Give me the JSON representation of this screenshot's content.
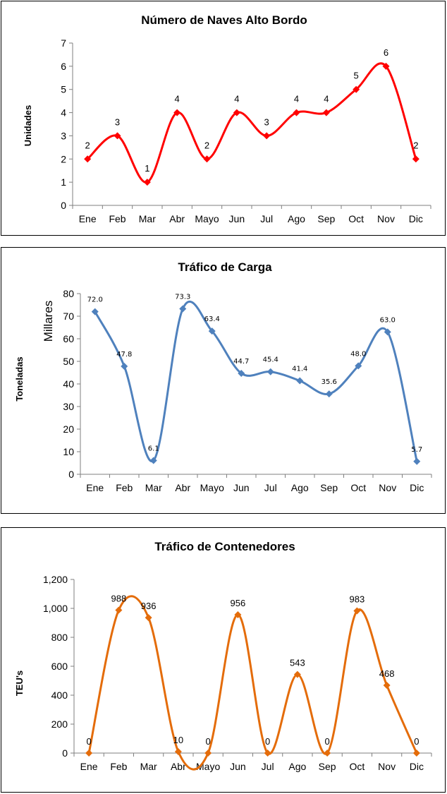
{
  "chart_data": [
    {
      "type": "line",
      "title": "Número de Naves Alto Bordo",
      "ylabel": "Unidades",
      "ylabel2": "",
      "categories": [
        "Ene",
        "Feb",
        "Mar",
        "Abr",
        "Mayo",
        "Jun",
        "Jul",
        "Ago",
        "Sep",
        "Oct",
        "Nov",
        "Dic"
      ],
      "series": [
        {
          "values": [
            2,
            3,
            1,
            4,
            2,
            4,
            3,
            4,
            4,
            5,
            6,
            2
          ]
        }
      ],
      "labels": [
        "2",
        "3",
        "1",
        "4",
        "2",
        "4",
        "3",
        "4",
        "4",
        "5",
        "6",
        "2"
      ],
      "ylim": [
        0,
        7
      ],
      "yticks": [
        0,
        1,
        2,
        3,
        4,
        5,
        6,
        7
      ],
      "ytick_labels": [
        "0",
        "1",
        "2",
        "3",
        "4",
        "5",
        "6",
        "7"
      ],
      "color": "#ff0000",
      "legend": "none",
      "grid": false
    },
    {
      "type": "line",
      "title": "Tráfico de Carga",
      "ylabel": "Toneladas",
      "ylabel2": "Millares",
      "categories": [
        "Ene",
        "Feb",
        "Mar",
        "Abr",
        "Mayo",
        "Jun",
        "Jul",
        "Ago",
        "Sep",
        "Oct",
        "Nov",
        "Dic"
      ],
      "series": [
        {
          "values": [
            72.0,
            47.8,
            6.1,
            73.3,
            63.4,
            44.7,
            45.4,
            41.4,
            35.6,
            48.0,
            63.0,
            5.7
          ]
        }
      ],
      "labels": [
        "72.0",
        "47.8",
        "6.1",
        "73.3",
        "63.4",
        "44.7",
        "45.4",
        "41.4",
        "35.6",
        "48.0",
        "63.0",
        "5.7"
      ],
      "ylim": [
        0,
        80
      ],
      "yticks": [
        0,
        10,
        20,
        30,
        40,
        50,
        60,
        70,
        80
      ],
      "ytick_labels": [
        "0",
        "10",
        "20",
        "30",
        "40",
        "50",
        "60",
        "70",
        "80"
      ],
      "color": "#4f81bd",
      "legend": "none",
      "grid": false
    },
    {
      "type": "line",
      "title": "Tráfico de Contenedores",
      "ylabel": "TEU's",
      "ylabel2": "",
      "categories": [
        "Ene",
        "Feb",
        "Mar",
        "Abr",
        "Mayo",
        "Jun",
        "Jul",
        "Ago",
        "Sep",
        "Oct",
        "Nov",
        "Dic"
      ],
      "series": [
        {
          "values": [
            0,
            988,
            936,
            10,
            0,
            956,
            0,
            543,
            0,
            983,
            468,
            0
          ]
        }
      ],
      "labels": [
        "0",
        "988",
        "936",
        "10",
        "0",
        "956",
        "0",
        "543",
        "0",
        "983",
        "468",
        "0"
      ],
      "ylim": [
        0,
        1200
      ],
      "yticks": [
        0,
        200,
        400,
        600,
        800,
        1000,
        1200
      ],
      "ytick_labels": [
        "0",
        "200",
        "400",
        "600",
        "800",
        "1,000",
        "1,200"
      ],
      "color": "#e46c0a",
      "legend": "none",
      "grid": false
    }
  ]
}
